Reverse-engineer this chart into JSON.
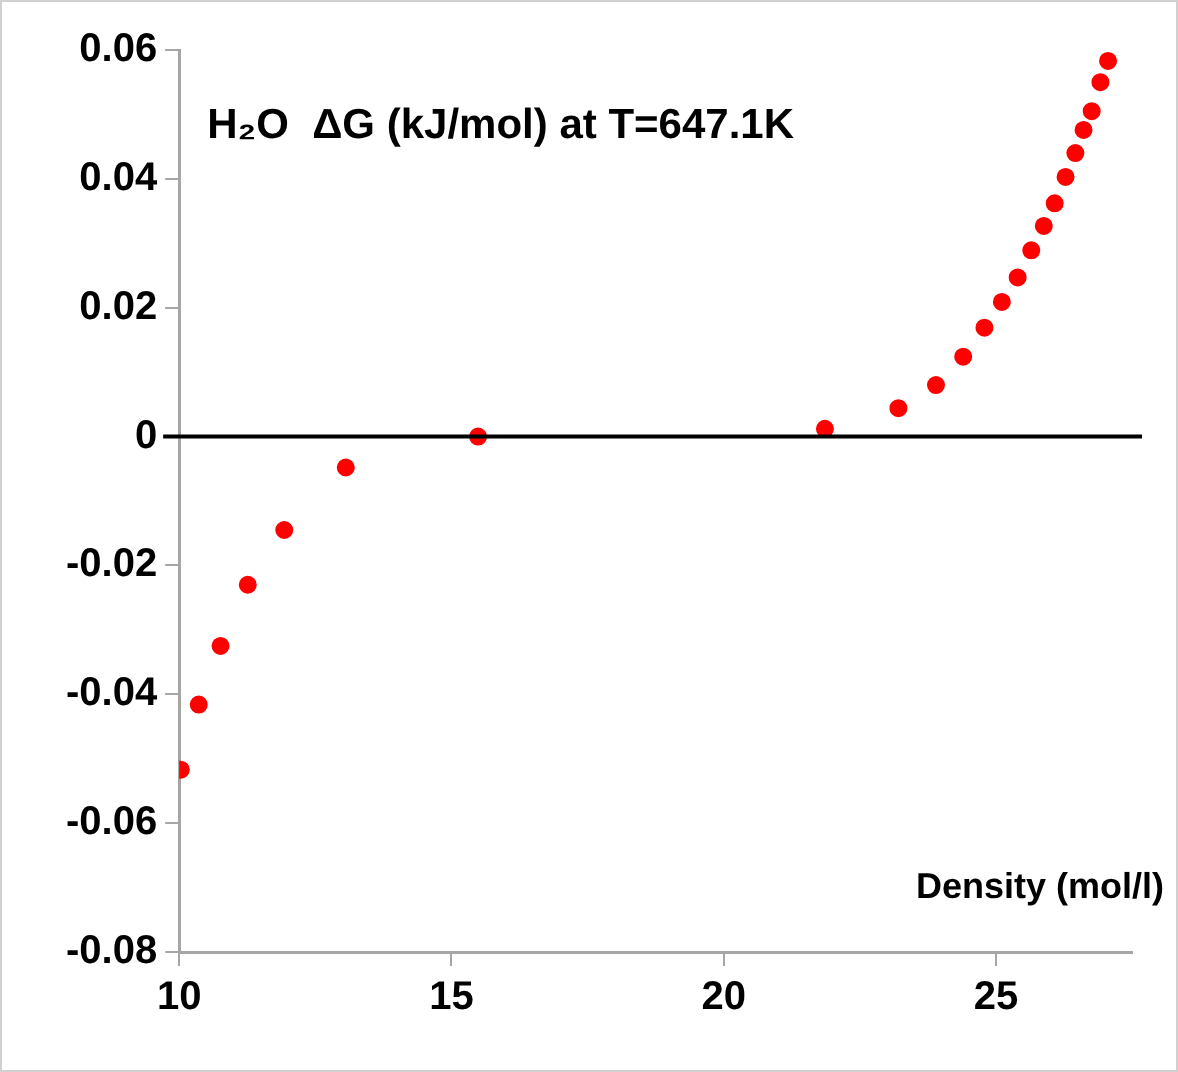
{
  "chart_data": {
    "type": "scatter",
    "title": "H₂O  ΔG (kJ/mol) at T=647.1K",
    "xlabel": "Density (mol/l)",
    "x": [
      10.03,
      10.36,
      10.76,
      11.26,
      11.93,
      13.06,
      15.49,
      21.86,
      23.21,
      23.9,
      24.4,
      24.79,
      25.11,
      25.4,
      25.65,
      25.88,
      26.08,
      26.28,
      26.46,
      26.61,
      26.76,
      26.92,
      27.06
    ],
    "series": [
      {
        "color": "#ff0000",
        "values": [
          -0.0517,
          -0.0416,
          -0.0325,
          -0.023,
          -0.0145,
          -0.0048,
          0.0,
          0.0012,
          0.0044,
          0.008,
          0.0124,
          0.0169,
          0.0209,
          0.0247,
          0.0289,
          0.0327,
          0.0362,
          0.0403,
          0.044,
          0.0476,
          0.0505,
          0.055,
          0.0583
        ]
      }
    ],
    "xlim": [
      10,
      27.5
    ],
    "xticks": [
      10,
      15,
      20,
      25
    ],
    "ylim": [
      -0.08,
      0.06
    ],
    "yticks": [
      -0.08,
      -0.06,
      -0.04,
      -0.02,
      0,
      0.02,
      0.04,
      0.06
    ],
    "ref_lines": [
      {
        "axis": "y",
        "value": 0,
        "color": "#000000"
      }
    ],
    "marker": "circle",
    "grid": false,
    "legend": false
  }
}
